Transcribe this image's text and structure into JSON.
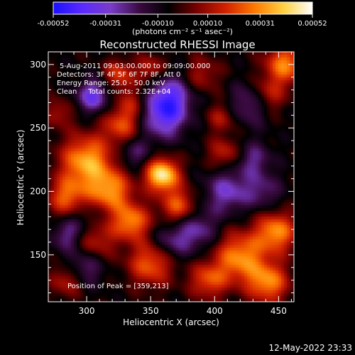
{
  "chart_data": {
    "type": "heatmap",
    "title": "Reconstructed RHESSI Image",
    "xlabel": "Heliocentric X (arcsec)",
    "ylabel": "Heliocentric Y (arcsec)",
    "xlim": [
      270,
      462
    ],
    "ylim": [
      113,
      310
    ],
    "x_ticks": [
      "300",
      "350",
      "400",
      "450"
    ],
    "y_ticks": [
      "150",
      "200",
      "250",
      "300"
    ],
    "x_tick_values": [
      300,
      350,
      400,
      450
    ],
    "y_tick_values": [
      150,
      200,
      250,
      300
    ],
    "colorbar": {
      "min": -0.00052,
      "max": 0.00052,
      "tick_labels": [
        "-0.00052",
        "-0.00031",
        "-0.00010",
        "0.00010",
        "0.00031",
        "0.00052"
      ],
      "tick_values": [
        -0.00052,
        -0.00031,
        -0.0001,
        0.0001,
        0.00031,
        0.00052
      ],
      "units": "(photons cm⁻² s⁻¹ asec⁻²)",
      "colors": [
        "#1a10ff",
        "#5a2aff",
        "#7a3cc8",
        "#3a0a40",
        "#000000",
        "#7a0000",
        "#d22200",
        "#ff7a00",
        "#ffd040",
        "#ffffff"
      ]
    },
    "info_lines": [
      "5-Aug-2011 09:03:00.000 to 09:09:00.000",
      "Detectors: 3F 4F 5F 6F 7F 8F, Att 0",
      "Energy Range: 25.0 - 50.0 keV",
      "Clean     Total counts: 2.32E+04"
    ],
    "peak_text": "Position of Peak = [359,213]",
    "peak": {
      "x": 359,
      "y": 213
    },
    "sources": [
      {
        "x": 359,
        "y": 213,
        "r": 9,
        "amp": 0.00052
      },
      {
        "x": 300,
        "y": 224,
        "r": 14,
        "amp": 0.0004
      },
      {
        "x": 318,
        "y": 200,
        "r": 12,
        "amp": 0.00036
      },
      {
        "x": 285,
        "y": 195,
        "r": 11,
        "amp": 0.0003
      },
      {
        "x": 335,
        "y": 176,
        "r": 10,
        "amp": 0.00034
      },
      {
        "x": 305,
        "y": 165,
        "r": 12,
        "amp": 0.0003
      },
      {
        "x": 372,
        "y": 188,
        "r": 10,
        "amp": 0.0003
      },
      {
        "x": 350,
        "y": 143,
        "r": 12,
        "amp": 0.0003
      },
      {
        "x": 420,
        "y": 148,
        "r": 14,
        "amp": 0.00036
      },
      {
        "x": 448,
        "y": 168,
        "r": 11,
        "amp": 0.00036
      },
      {
        "x": 442,
        "y": 128,
        "r": 11,
        "amp": 0.00034
      },
      {
        "x": 395,
        "y": 130,
        "r": 10,
        "amp": 0.00026
      },
      {
        "x": 455,
        "y": 300,
        "r": 11,
        "amp": 0.00034
      },
      {
        "x": 440,
        "y": 275,
        "r": 10,
        "amp": 0.00026
      },
      {
        "x": 325,
        "y": 292,
        "r": 8,
        "amp": 0.00024
      },
      {
        "x": 408,
        "y": 230,
        "r": 9,
        "amp": 0.0002
      },
      {
        "x": 390,
        "y": 292,
        "r": 10,
        "amp": 0.00016
      },
      {
        "x": 278,
        "y": 262,
        "r": 8,
        "amp": 0.00016
      },
      {
        "x": 285,
        "y": 130,
        "r": 9,
        "amp": 0.0002
      },
      {
        "x": 327,
        "y": 252,
        "r": 10,
        "amp": 0.00026
      },
      {
        "x": 335,
        "y": 270,
        "r": 9,
        "amp": 0.00016
      },
      {
        "x": 350,
        "y": 296,
        "r": 8,
        "amp": 0.0002
      },
      {
        "x": 405,
        "y": 258,
        "r": 8,
        "amp": 0.00016
      },
      {
        "x": 305,
        "y": 275,
        "r": 9,
        "amp": -0.0003
      },
      {
        "x": 300,
        "y": 175,
        "r": 12,
        "amp": -0.00022
      },
      {
        "x": 298,
        "y": 140,
        "r": 10,
        "amp": -0.0002
      },
      {
        "x": 360,
        "y": 258,
        "r": 12,
        "amp": -0.00028
      },
      {
        "x": 365,
        "y": 275,
        "r": 12,
        "amp": -0.0003
      },
      {
        "x": 410,
        "y": 200,
        "r": 12,
        "amp": -0.00024
      },
      {
        "x": 385,
        "y": 170,
        "r": 12,
        "amp": -0.00022
      },
      {
        "x": 430,
        "y": 270,
        "r": 11,
        "amp": -0.00026
      },
      {
        "x": 430,
        "y": 225,
        "r": 10,
        "amp": -0.00018
      },
      {
        "x": 438,
        "y": 200,
        "r": 10,
        "amp": -0.00016
      },
      {
        "x": 285,
        "y": 165,
        "r": 9,
        "amp": -0.00018
      },
      {
        "x": 337,
        "y": 230,
        "r": 9,
        "amp": -0.00016
      },
      {
        "x": 365,
        "y": 160,
        "r": 10,
        "amp": -0.00016
      }
    ]
  },
  "timestamp": "12-May-2022 23:33"
}
